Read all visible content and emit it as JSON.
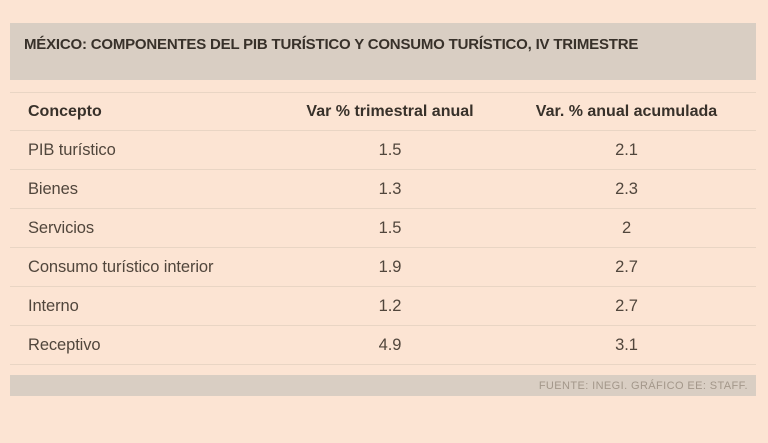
{
  "colors": {
    "background": "#fce4d3",
    "panel": "#d9cec3",
    "divider": "#e9d5c4",
    "title_text": "#38312a",
    "body_text": "#51463c",
    "source_text": "#a3978a"
  },
  "header": {
    "title": "MÉXICO: COMPONENTES DEL PIB TURÍSTICO Y CONSUMO TURÍSTICO, IV TRIMESTRE"
  },
  "table": {
    "columns": [
      "Concepto",
      "Var % trimestral anual",
      "Var. % anual acumulada"
    ],
    "rows": [
      {
        "concepto": "PIB turístico",
        "var_trimestral": "1.5",
        "var_acumulada": "2.1"
      },
      {
        "concepto": "Bienes",
        "var_trimestral": "1.3",
        "var_acumulada": "2.3"
      },
      {
        "concepto": "Servicios",
        "var_trimestral": "1.5",
        "var_acumulada": "2"
      },
      {
        "concepto": "Consumo turístico interior",
        "var_trimestral": "1.9",
        "var_acumulada": "2.7"
      },
      {
        "concepto": "Interno",
        "var_trimestral": "1.2",
        "var_acumulada": "2.7"
      },
      {
        "concepto": "Receptivo",
        "var_trimestral": "4.9",
        "var_acumulada": "3.1"
      }
    ]
  },
  "footer": {
    "source": "FUENTE: INEGI. GRÁFICO EE: STAFF."
  },
  "chart_data": {
    "type": "table",
    "title": "MÉXICO: COMPONENTES DEL PIB TURÍSTICO Y CONSUMO TURÍSTICO, IV TRIMESTRE",
    "columns": [
      "Concepto",
      "Var % trimestral anual",
      "Var. % anual acumulada"
    ],
    "rows": [
      [
        "PIB turístico",
        1.5,
        2.1
      ],
      [
        "Bienes",
        1.3,
        2.3
      ],
      [
        "Servicios",
        1.5,
        2
      ],
      [
        "Consumo turístico interior",
        1.9,
        2.7
      ],
      [
        "Interno",
        1.2,
        2.7
      ],
      [
        "Receptivo",
        4.9,
        3.1
      ]
    ],
    "source": "FUENTE: INEGI. GRÁFICO EE: STAFF."
  }
}
